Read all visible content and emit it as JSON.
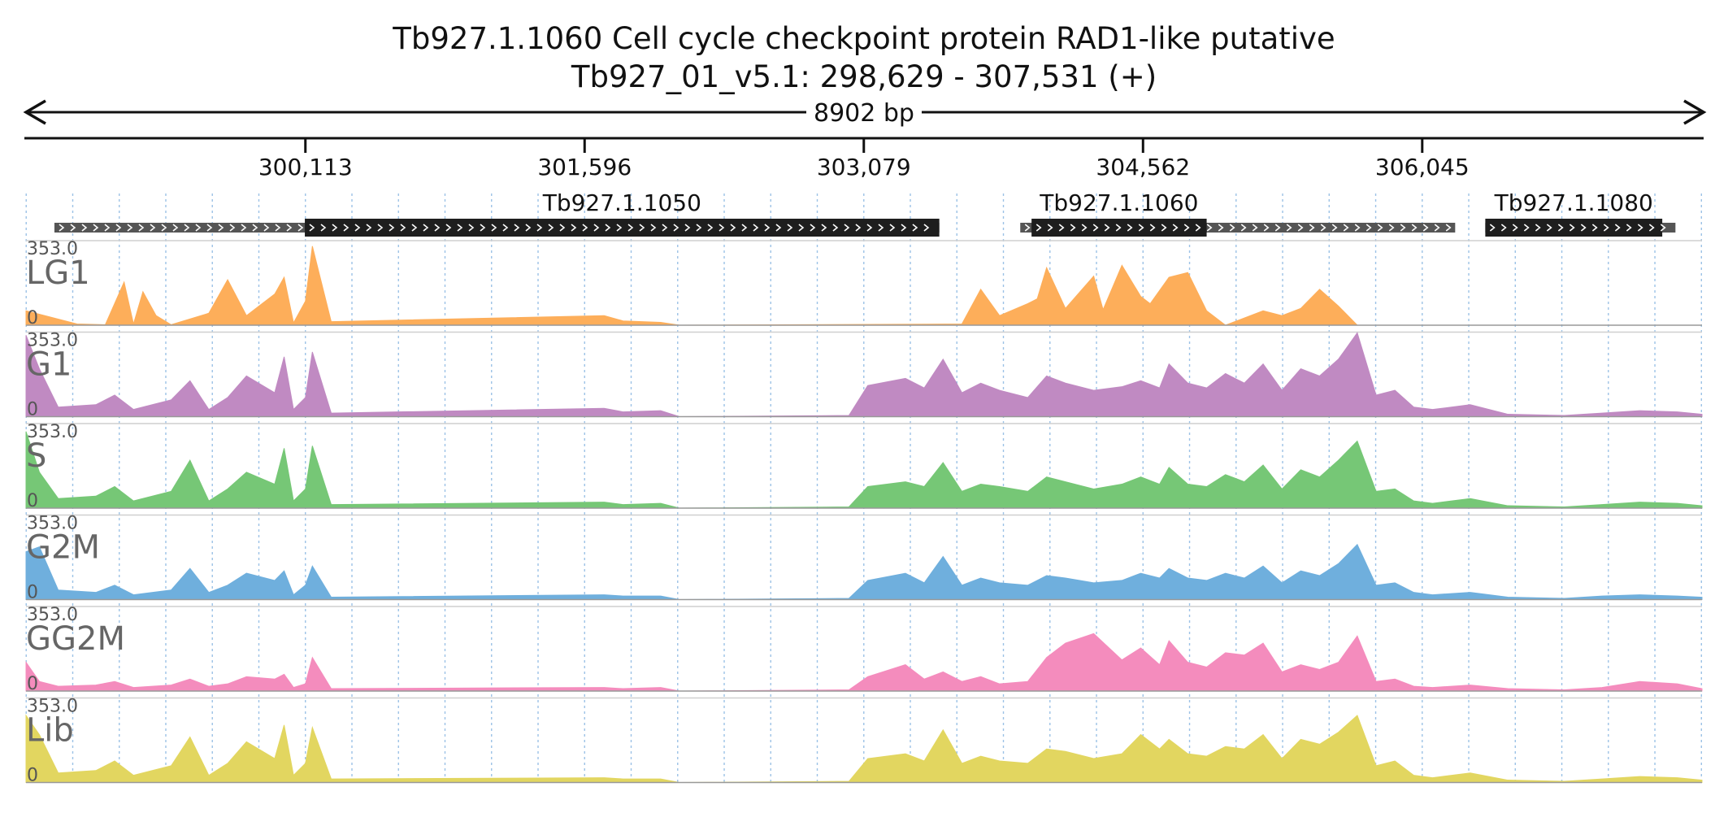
{
  "chart_data": {
    "type": "area",
    "title": "Tb927.1.1060  Cell cycle checkpoint protein RAD1-like  putative",
    "subtitle": "Tb927_01_v5.1: 298,629 - 307,531 (+)",
    "span_label": "8902 bp",
    "xlim": [
      298629,
      307531
    ],
    "ylim": [
      0,
      353.0
    ],
    "y_max_label": "353.0",
    "y_min_label": "0",
    "xticks": [
      300113,
      301596,
      303079,
      304562,
      306045
    ],
    "xtick_labels": [
      "300,113",
      "301,596",
      "303,079",
      "304,562",
      "306,045"
    ],
    "genes": [
      {
        "name": "",
        "start": 298780,
        "end": 301810,
        "cds_start": 300110,
        "cds_end": 303480
      },
      {
        "name": "Tb927.1.1050",
        "start": 298780,
        "end": 303480,
        "cds_start": 300110,
        "cds_end": 303480
      },
      {
        "name": "Tb927.1.1060",
        "start": 303910,
        "end": 306220,
        "cds_start": 303970,
        "cds_end": 304900
      },
      {
        "name": "Tb927.1.1080",
        "start": 306380,
        "end": 307390,
        "cds_start": 306380,
        "cds_end": 307320
      }
    ],
    "series": [
      {
        "name": "LG1",
        "color": "#fdae5a",
        "x": [
          298629,
          298900,
          299050,
          299150,
          299200,
          299250,
          299320,
          299400,
          299600,
          299700,
          299800,
          299950,
          300000,
          300050,
          300113,
          300150,
          300250,
          301700,
          301800,
          302000,
          302100,
          303600,
          303700,
          303800,
          303950,
          304000,
          304050,
          304150,
          304300,
          304350,
          304450,
          304550,
          304600,
          304700,
          304800,
          304900,
          305000,
          305200,
          305300,
          305400,
          305500,
          305600,
          305700,
          305800,
          305900,
          306000,
          306500,
          307000,
          307531
        ],
        "values": [
          60,
          5,
          2,
          180,
          5,
          140,
          40,
          2,
          50,
          190,
          40,
          130,
          200,
          10,
          100,
          330,
          15,
          40,
          18,
          12,
          0,
          5,
          150,
          40,
          90,
          110,
          240,
          70,
          205,
          65,
          250,
          120,
          90,
          200,
          220,
          60,
          0,
          60,
          40,
          70,
          150,
          80,
          0,
          0,
          0,
          0,
          0,
          0,
          0
        ]
      },
      {
        "name": "G1",
        "color": "#c08ac2",
        "x": [
          298629,
          298700,
          298800,
          299000,
          299100,
          299200,
          299400,
          299500,
          299600,
          299700,
          299800,
          299950,
          300000,
          300050,
          300113,
          300150,
          300250,
          301700,
          301800,
          302000,
          302100,
          303000,
          303100,
          303300,
          303400,
          303500,
          303600,
          303700,
          303800,
          303950,
          304050,
          304150,
          304300,
          304450,
          304550,
          304650,
          304700,
          304800,
          304900,
          305000,
          305100,
          305200,
          305300,
          305400,
          305500,
          305600,
          305700,
          305800,
          305900,
          306000,
          306100,
          306300,
          306500,
          306800,
          307000,
          307200,
          307400,
          307531
        ],
        "values": [
          340,
          200,
          40,
          50,
          90,
          30,
          70,
          150,
          30,
          80,
          170,
          100,
          250,
          30,
          80,
          270,
          15,
          35,
          20,
          25,
          0,
          5,
          130,
          160,
          120,
          240,
          100,
          140,
          110,
          80,
          170,
          140,
          110,
          125,
          150,
          120,
          220,
          140,
          120,
          180,
          140,
          220,
          110,
          200,
          170,
          240,
          350,
          90,
          110,
          40,
          30,
          50,
          10,
          5,
          15,
          25,
          20,
          10
        ]
      },
      {
        "name": "S",
        "color": "#76c776",
        "x": [
          298629,
          298700,
          298800,
          299000,
          299100,
          299200,
          299400,
          299500,
          299600,
          299700,
          299800,
          299950,
          300000,
          300050,
          300113,
          300150,
          300250,
          301700,
          301800,
          302000,
          302100,
          303000,
          303100,
          303300,
          303400,
          303500,
          303600,
          303700,
          303800,
          303950,
          304050,
          304150,
          304300,
          304450,
          304550,
          304650,
          304700,
          304800,
          304900,
          305000,
          305100,
          305200,
          305300,
          305400,
          305500,
          305600,
          305700,
          305800,
          305900,
          306000,
          306100,
          306300,
          306500,
          306800,
          307000,
          307200,
          307400,
          307531
        ],
        "values": [
          320,
          150,
          40,
          50,
          90,
          30,
          70,
          200,
          30,
          80,
          150,
          100,
          250,
          30,
          80,
          260,
          15,
          25,
          15,
          20,
          0,
          5,
          90,
          110,
          90,
          190,
          70,
          100,
          90,
          70,
          130,
          110,
          80,
          100,
          130,
          100,
          170,
          100,
          90,
          140,
          110,
          180,
          80,
          160,
          130,
          200,
          280,
          70,
          80,
          30,
          20,
          40,
          10,
          5,
          15,
          25,
          20,
          10
        ]
      },
      {
        "name": "G2M",
        "color": "#6fafdd",
        "x": [
          298629,
          298700,
          298800,
          299000,
          299100,
          299200,
          299400,
          299500,
          299600,
          299700,
          299800,
          299950,
          300000,
          300050,
          300113,
          300150,
          300250,
          301700,
          301800,
          302000,
          302100,
          303000,
          303100,
          303300,
          303400,
          303500,
          303600,
          303700,
          303800,
          303950,
          304050,
          304150,
          304300,
          304450,
          304550,
          304650,
          304700,
          304800,
          304900,
          305000,
          305100,
          305200,
          305300,
          305400,
          305500,
          305600,
          305700,
          305800,
          305900,
          306000,
          306100,
          306300,
          306500,
          306800,
          307000,
          307200,
          307400,
          307531
        ],
        "values": [
          200,
          220,
          40,
          30,
          60,
          20,
          40,
          130,
          30,
          60,
          110,
          80,
          120,
          20,
          60,
          140,
          10,
          20,
          15,
          15,
          0,
          5,
          80,
          110,
          70,
          180,
          60,
          90,
          70,
          60,
          100,
          90,
          70,
          80,
          110,
          90,
          130,
          90,
          80,
          110,
          90,
          140,
          70,
          120,
          100,
          150,
          230,
          60,
          70,
          30,
          20,
          30,
          10,
          5,
          15,
          20,
          15,
          10
        ]
      },
      {
        "name": "GG2M",
        "color": "#f48cbd",
        "x": [
          298629,
          298700,
          298800,
          299000,
          299100,
          299200,
          299400,
          299500,
          299600,
          299700,
          299800,
          299950,
          300000,
          300050,
          300113,
          300150,
          300250,
          301700,
          301800,
          302000,
          302100,
          303000,
          303100,
          303300,
          303400,
          303500,
          303600,
          303700,
          303800,
          303950,
          304050,
          304150,
          304300,
          304450,
          304550,
          304650,
          304700,
          304800,
          304900,
          305000,
          305100,
          305200,
          305300,
          305400,
          305500,
          305600,
          305700,
          305800,
          305900,
          306000,
          306100,
          306300,
          306500,
          306800,
          307000,
          307200,
          307400,
          307531
        ],
        "values": [
          120,
          40,
          20,
          25,
          40,
          15,
          25,
          50,
          20,
          30,
          60,
          50,
          70,
          15,
          30,
          140,
          10,
          15,
          10,
          15,
          0,
          5,
          60,
          110,
          50,
          80,
          40,
          60,
          30,
          40,
          140,
          200,
          240,
          130,
          180,
          110,
          210,
          120,
          100,
          160,
          150,
          200,
          80,
          110,
          90,
          120,
          230,
          40,
          50,
          20,
          15,
          25,
          10,
          5,
          15,
          40,
          30,
          10
        ]
      },
      {
        "name": "Lib",
        "color": "#e2d660",
        "x": [
          298629,
          298700,
          298800,
          299000,
          299100,
          299200,
          299400,
          299500,
          299600,
          299700,
          299800,
          299950,
          300000,
          300050,
          300113,
          300150,
          300250,
          301700,
          301800,
          302000,
          302100,
          303000,
          303100,
          303300,
          303400,
          303500,
          303600,
          303700,
          303800,
          303950,
          304050,
          304150,
          304300,
          304450,
          304550,
          304650,
          304700,
          304800,
          304900,
          305000,
          305100,
          305200,
          305300,
          305400,
          305500,
          305600,
          305700,
          305800,
          305900,
          306000,
          306100,
          306300,
          306500,
          306800,
          307000,
          307200,
          307400,
          307531
        ],
        "values": [
          280,
          200,
          40,
          50,
          90,
          30,
          70,
          190,
          30,
          80,
          170,
          100,
          240,
          30,
          80,
          230,
          15,
          20,
          15,
          15,
          0,
          5,
          100,
          120,
          90,
          220,
          80,
          110,
          90,
          80,
          140,
          130,
          100,
          120,
          200,
          140,
          180,
          120,
          110,
          150,
          140,
          200,
          100,
          180,
          160,
          210,
          280,
          70,
          90,
          30,
          20,
          40,
          10,
          5,
          15,
          25,
          20,
          10
        ]
      }
    ]
  }
}
